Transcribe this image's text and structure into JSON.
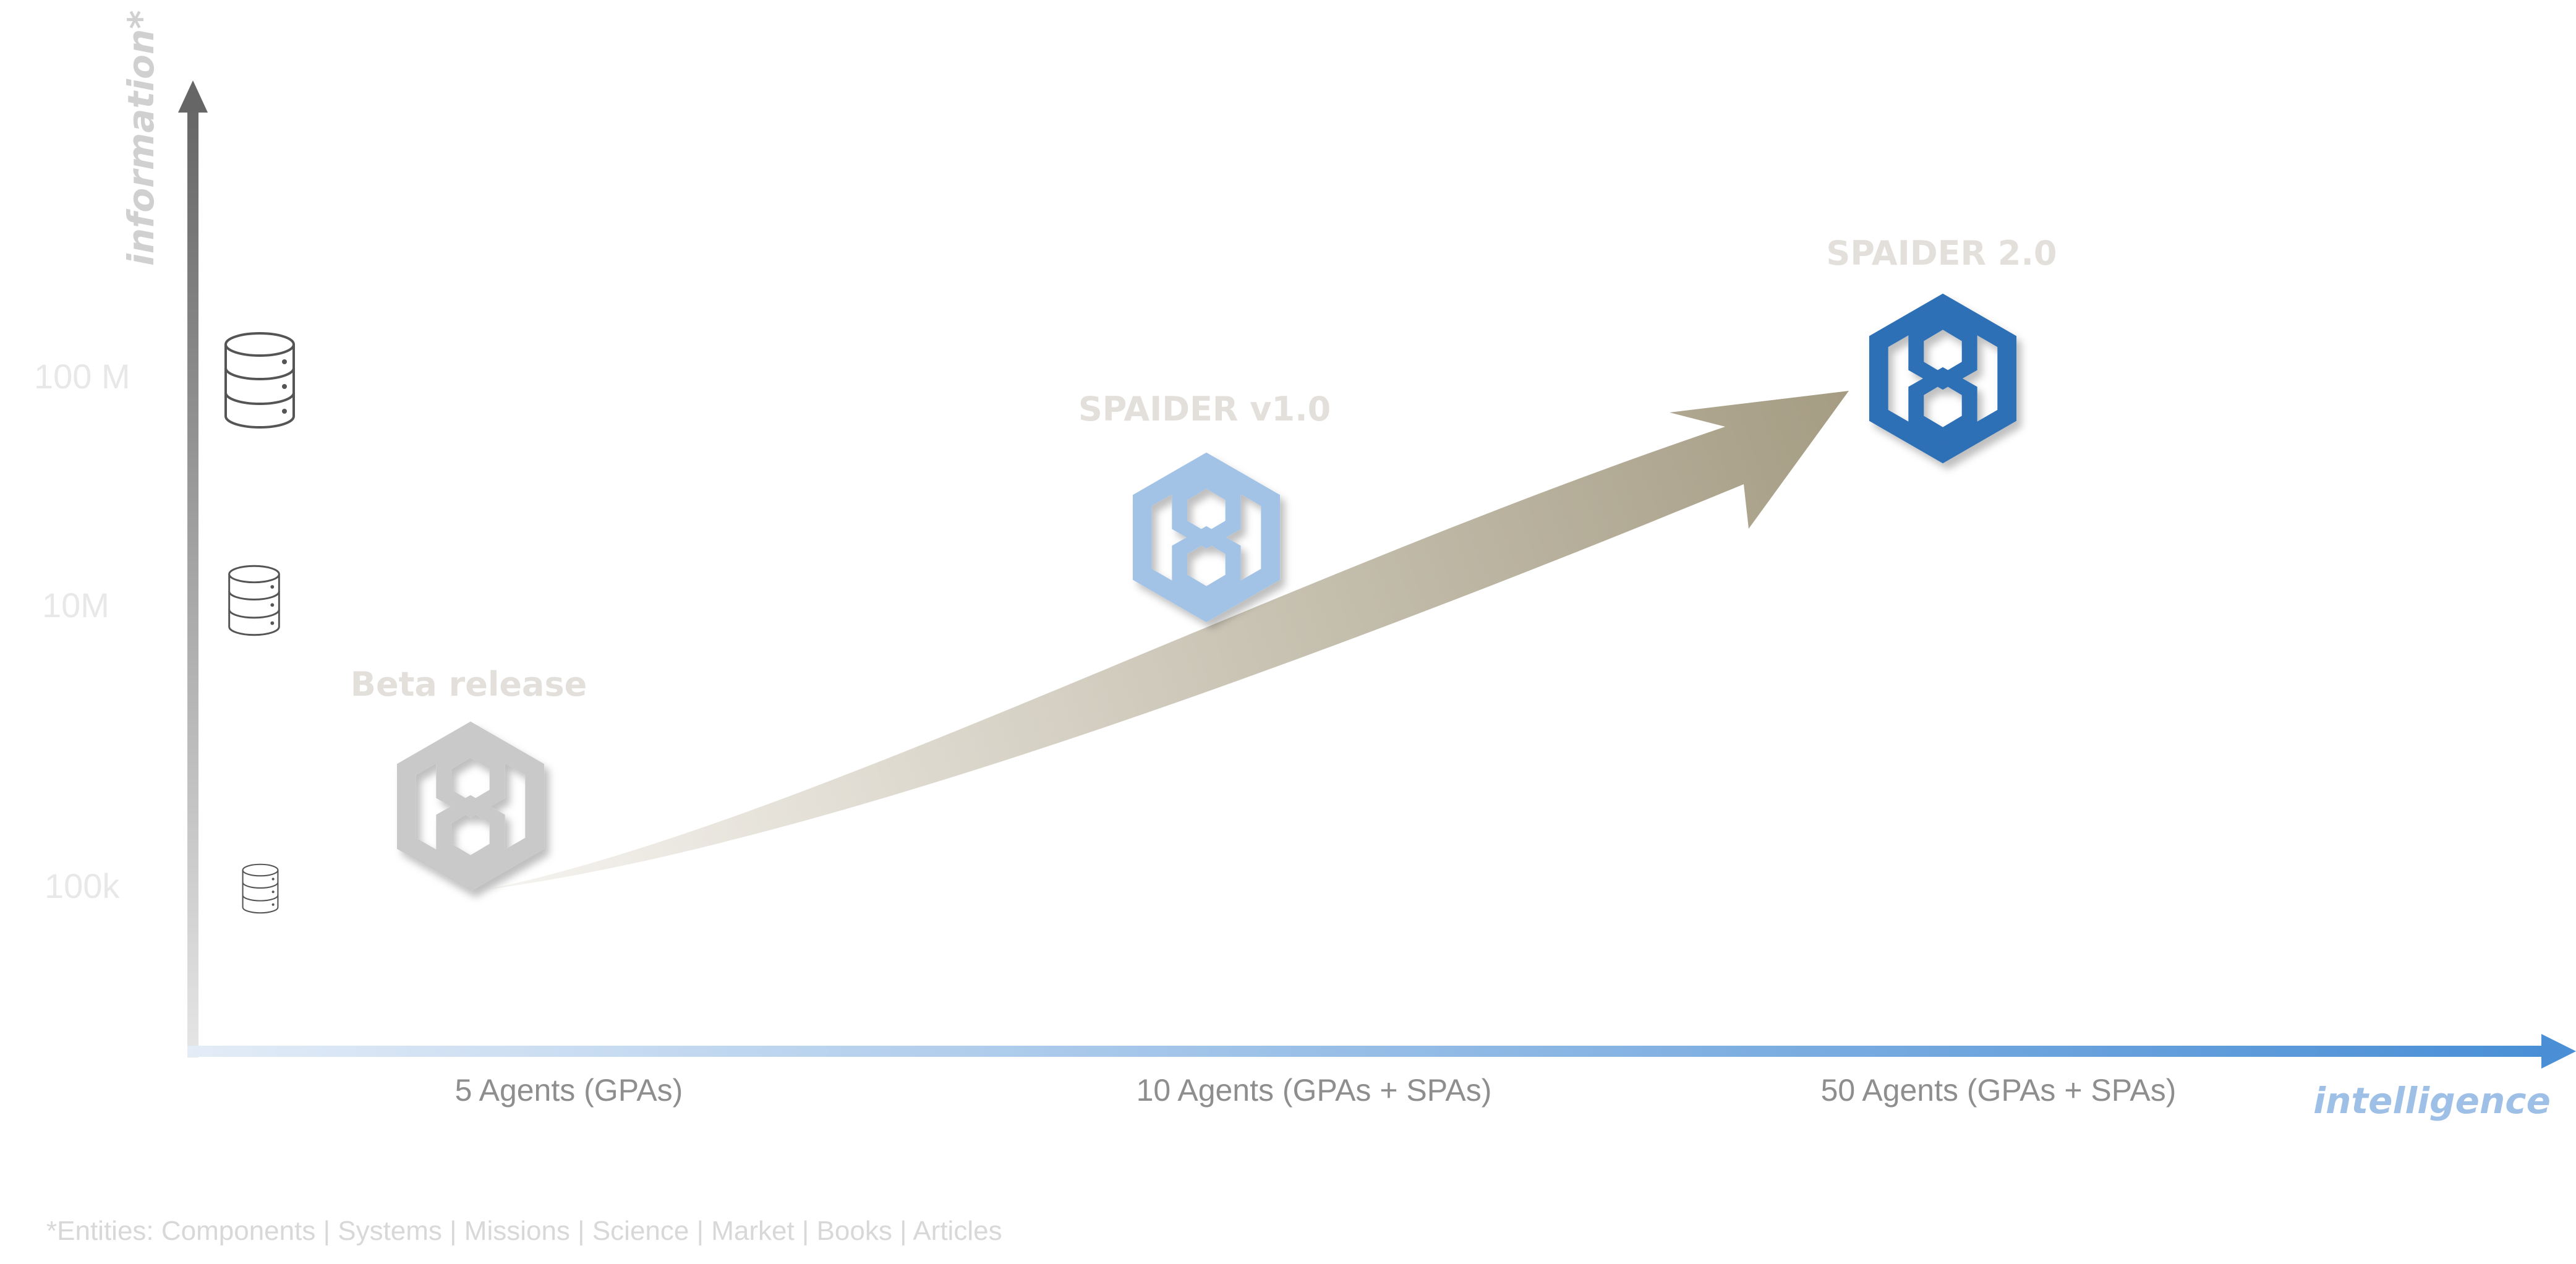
{
  "diagram": {
    "y_axis_label": "information*",
    "x_axis_label": "intelligence",
    "y_ticks": [
      "100 M",
      "10M",
      "100k"
    ],
    "x_ticks": [
      "5 Agents (GPAs)",
      "10 Agents (GPAs + SPAs)",
      "50 Agents (GPAs + SPAs)"
    ],
    "releases": [
      {
        "label": "Beta release",
        "color": "#c9c9c9"
      },
      {
        "label": "SPAIDER v1.0",
        "color": "#a2c3e6"
      },
      {
        "label": "SPAIDER 2.0",
        "color": "#2e6fb6"
      }
    ],
    "icons": [
      "database-icon-large",
      "database-icon-medium",
      "database-icon-small",
      "hexagon-logo-icon",
      "growth-arrow"
    ],
    "footnote": "*Entities: Components | Systems | Missions | Science | Market | Books | Articles",
    "colors": {
      "y_axis_top": "#666666",
      "y_axis_bottom": "#e6e6e6",
      "x_axis_start": "#e3ecf7",
      "x_axis_end": "#4a8fd6",
      "arrow_start": "#f4f2ee",
      "arrow_end": "#a8a08a",
      "label_gray": "#e3e0dc",
      "tick_gray": "#8e8e8e",
      "faint_gray": "#e8e8e8",
      "x_label_blue": "#9fc0e6",
      "y_label_gray": "#d0d0d0"
    }
  }
}
